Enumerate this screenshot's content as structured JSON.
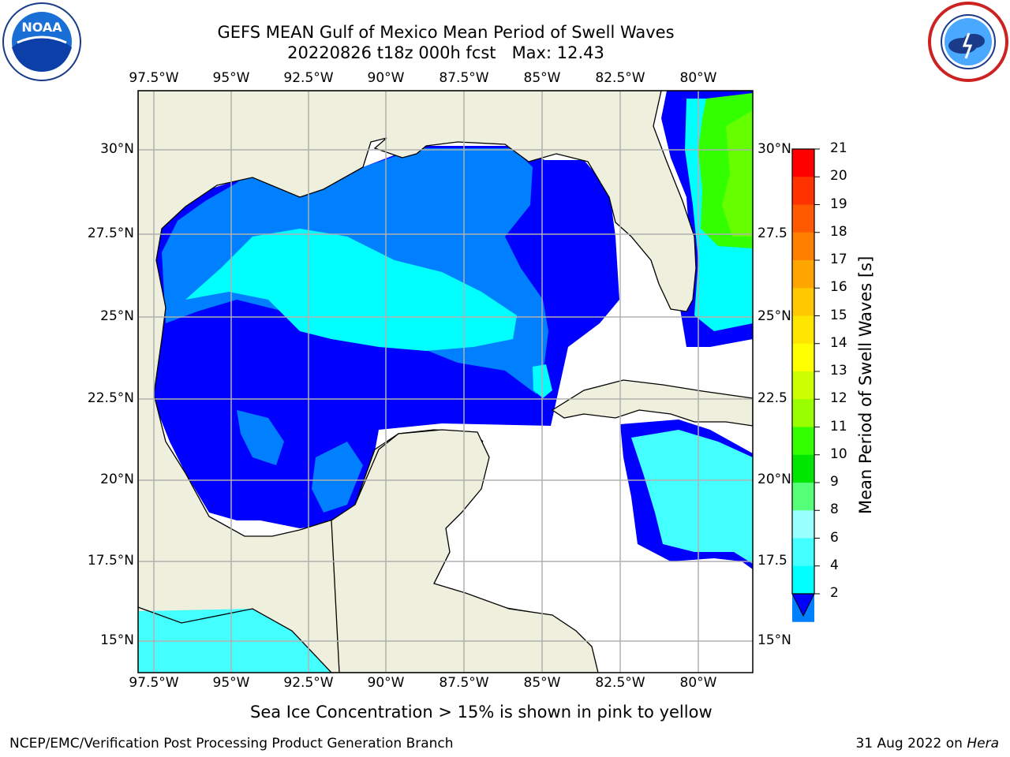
{
  "title": {
    "line1": "GEFS MEAN Gulf of Mexico Mean Period of Swell Waves",
    "line2": "20220826 t18z 000h fcst   Max: 12.43"
  },
  "logos": {
    "left": {
      "icon": "noaa-logo-icon",
      "text": "NOAA"
    },
    "right": {
      "icon": "nws-logo-icon"
    }
  },
  "map": {
    "lon_labels": [
      "97.5°W",
      "95°W",
      "92.5°W",
      "90°W",
      "87.5°W",
      "85°W",
      "82.5°W",
      "80°W"
    ],
    "lat_labels_left": [
      "30°N",
      "27.5°N",
      "25°N",
      "22.5°N",
      "20°N",
      "17.5°N",
      "15°N"
    ],
    "lat_labels_right": [
      "30°N",
      "27.5",
      "25°N",
      "22.5",
      "20°N",
      "17.5",
      "15°N"
    ],
    "lon_range": [
      -98,
      -79
    ],
    "lat_range": [
      14,
      31.5
    ],
    "colors": {
      "land": "#efefdd",
      "ocean_deep": "#0000ff",
      "ocean_mid": "#0080ff",
      "ocean_light": "#00ffff",
      "ocean_pale": "#80ffff",
      "green": "#33ff00",
      "grid": "#b0b0b0"
    }
  },
  "colorbar": {
    "label": "Mean Period of Swell Waves [s]",
    "ticks": [
      "21",
      "20",
      "19",
      "18",
      "17",
      "16",
      "15",
      "14",
      "13",
      "12",
      "11",
      "10",
      "9",
      "8",
      "6",
      "4",
      "2"
    ],
    "colors": [
      "#ff0000",
      "#ff3300",
      "#ff5a00",
      "#ff8000",
      "#ffa500",
      "#ffc800",
      "#ffe600",
      "#ffff00",
      "#ccff00",
      "#99ff00",
      "#33ff00",
      "#00e600",
      "#55ff77",
      "#99ffff",
      "#44ffff",
      "#00ffff",
      "#0080ff"
    ],
    "extend_color": "#0000ff"
  },
  "caption": "Sea Ice Concentration > 15% is shown in pink to yellow",
  "footer": {
    "left": "NCEP/EMC/Verification Post Processing Product Generation Branch",
    "right_prefix": "31 Aug 2022 on ",
    "right_host": "Hera"
  }
}
